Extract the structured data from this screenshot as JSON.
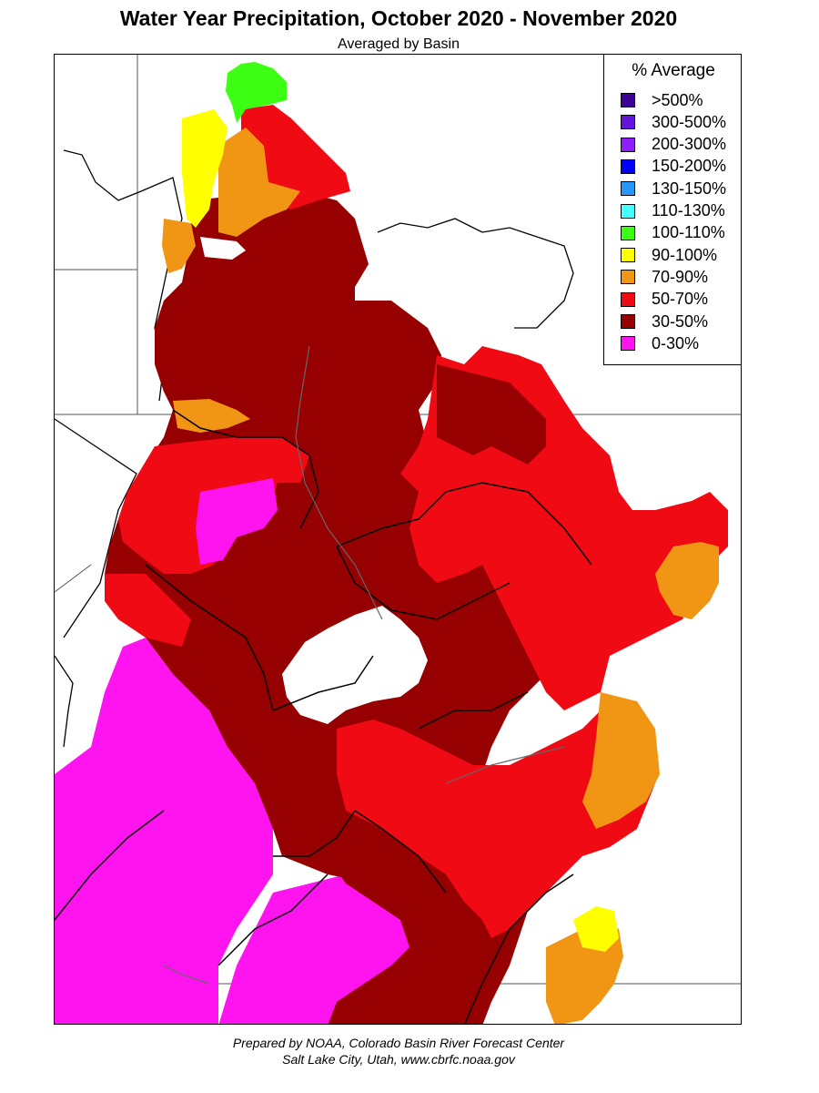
{
  "title": "Water Year Precipitation, October 2020 - November 2020",
  "subtitle": "Averaged by Basin",
  "legend": {
    "title": "% Average",
    "items": [
      {
        "label": ">500%",
        "color": "#3c0096"
      },
      {
        "label": "300-500%",
        "color": "#6414dc"
      },
      {
        "label": "200-300%",
        "color": "#8c1eff"
      },
      {
        "label": "150-200%",
        "color": "#0000ff"
      },
      {
        "label": "130-150%",
        "color": "#2896ff"
      },
      {
        "label": "110-130%",
        "color": "#46ffff"
      },
      {
        "label": "100-110%",
        "color": "#3cff14"
      },
      {
        "label": "90-100%",
        "color": "#ffff00"
      },
      {
        "label": "70-90%",
        "color": "#f09614"
      },
      {
        "label": "50-70%",
        "color": "#f00a14"
      },
      {
        "label": "30-50%",
        "color": "#960000"
      },
      {
        "label": "0-30%",
        "color": "#ff14f0"
      }
    ]
  },
  "credit": {
    "line1": "Prepared by NOAA, Colorado Basin River Forecast Center",
    "line2": "Salt Lake City, Utah, www.cbrfc.noaa.gov"
  }
}
